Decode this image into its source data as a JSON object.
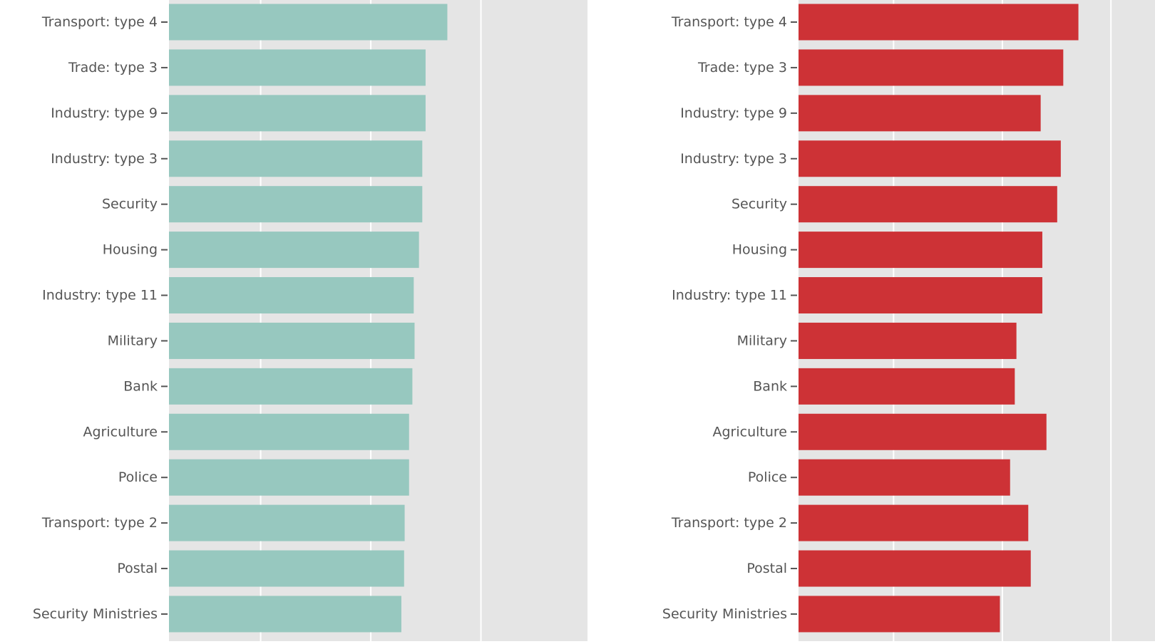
{
  "chart_data": [
    {
      "type": "bar",
      "orientation": "horizontal",
      "categories": [
        "Transport: type 4",
        "Trade: type 3",
        "Industry: type 9",
        "Industry: type 3",
        "Security",
        "Housing",
        "Industry: type 11",
        "Military",
        "Bank",
        "Agriculture",
        "Police",
        "Transport: type 2",
        "Postal",
        "Security Ministries"
      ],
      "values": [
        0.1011,
        0.0932,
        0.0932,
        0.092,
        0.092,
        0.0908,
        0.0889,
        0.0892,
        0.0884,
        0.0872,
        0.0872,
        0.0856,
        0.0854,
        0.0844
      ],
      "color": "#97c8bf",
      "background": "#e5e5e5",
      "grid": true,
      "x_ticks": [
        0.0,
        0.0333,
        0.0733,
        0.1133
      ],
      "x_tick_labels_visible": false,
      "xlim": [
        0.0,
        0.152
      ]
    },
    {
      "type": "bar",
      "orientation": "horizontal",
      "categories": [
        "Transport: type 4",
        "Trade: type 3",
        "Industry: type 9",
        "Industry: type 3",
        "Security",
        "Housing",
        "Industry: type 11",
        "Military",
        "Bank",
        "Agriculture",
        "Police",
        "Transport: type 2",
        "Postal",
        "Security Ministries"
      ],
      "values": [
        0.1016,
        0.0961,
        0.0879,
        0.0952,
        0.0939,
        0.0885,
        0.0885,
        0.0791,
        0.0785,
        0.09,
        0.0768,
        0.0834,
        0.0843,
        0.0731
      ],
      "color": "#cd3236",
      "background": "#e5e5e5",
      "grid": true,
      "x_ticks": [
        0.0,
        0.0345,
        0.074,
        0.1134
      ],
      "x_tick_labels_visible": false,
      "xlim": [
        0.0,
        0.1294
      ]
    }
  ]
}
